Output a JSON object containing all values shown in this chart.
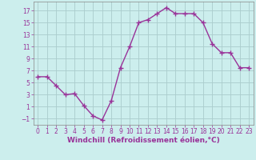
{
  "x": [
    0,
    1,
    2,
    3,
    4,
    5,
    6,
    7,
    8,
    9,
    10,
    11,
    12,
    13,
    14,
    15,
    16,
    17,
    18,
    19,
    20,
    21,
    22,
    23
  ],
  "y": [
    6,
    6,
    4.5,
    3,
    3.2,
    1.2,
    -0.5,
    -1.2,
    2,
    7.5,
    11,
    15,
    15.5,
    16.5,
    17.5,
    16.5,
    16.5,
    16.5,
    15,
    11.5,
    10,
    10,
    7.5,
    7.5
  ],
  "line_color": "#993399",
  "marker": "+",
  "marker_size": 4,
  "bg_color": "#cceeed",
  "grid_color": "#aacccc",
  "xlabel": "Windchill (Refroidissement éolien,°C)",
  "xlim": [
    -0.5,
    23.5
  ],
  "ylim": [
    -2,
    18.5
  ],
  "yticks": [
    -1,
    1,
    3,
    5,
    7,
    9,
    11,
    13,
    15,
    17
  ],
  "xticks": [
    0,
    1,
    2,
    3,
    4,
    5,
    6,
    7,
    8,
    9,
    10,
    11,
    12,
    13,
    14,
    15,
    16,
    17,
    18,
    19,
    20,
    21,
    22,
    23
  ],
  "label_color": "#993399",
  "tick_fontsize": 5.5,
  "xlabel_fontsize": 6.5,
  "line_width": 1.0,
  "marker_edge_width": 1.0
}
